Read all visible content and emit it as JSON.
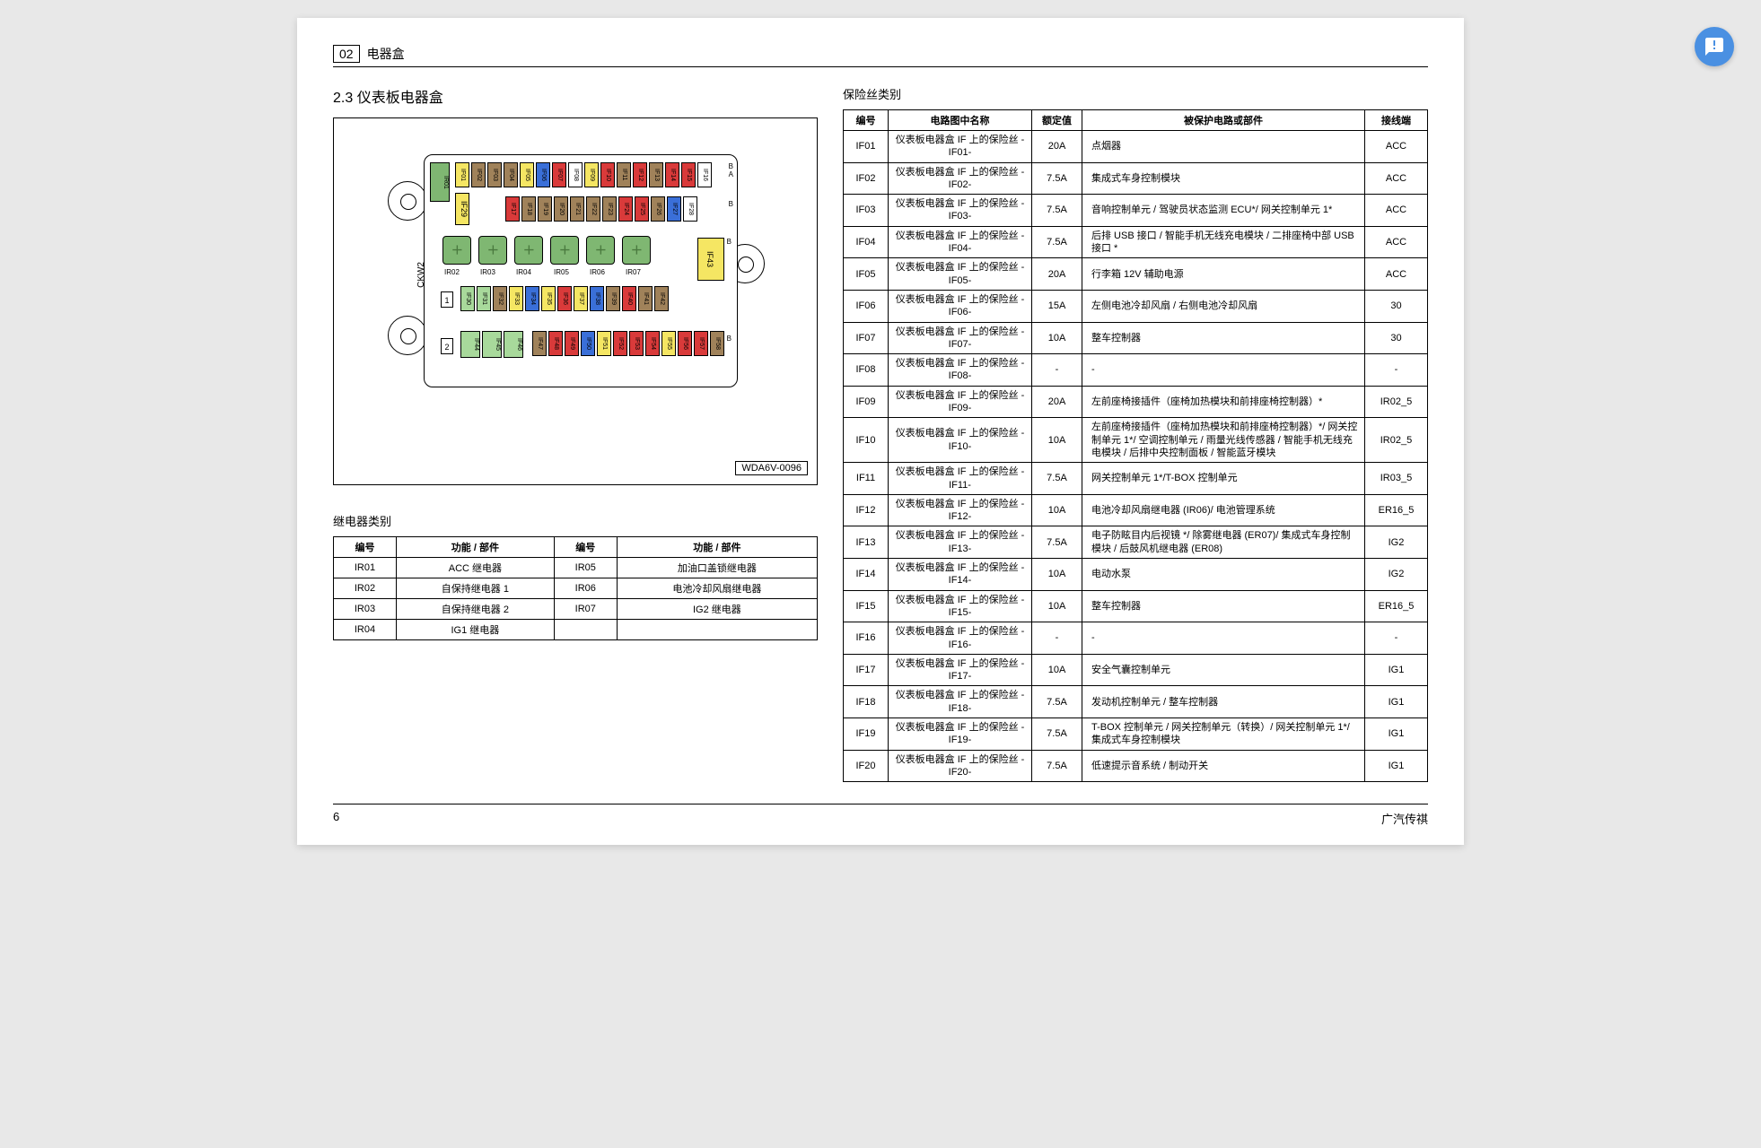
{
  "header": {
    "chapter": "02",
    "title": "电器盒"
  },
  "section_title": "2.3 仪表板电器盒",
  "diagram_code": "WDA6V-0096",
  "ckw2": "CKW2",
  "relay_section_title": "继电器类别",
  "fuse_section_title": "保险丝类别",
  "relay_table": {
    "headers": [
      "编号",
      "功能 / 部件",
      "编号",
      "功能 / 部件"
    ],
    "rows": [
      [
        "IR01",
        "ACC 继电器",
        "IR05",
        "加油口盖锁继电器"
      ],
      [
        "IR02",
        "自保持继电器 1",
        "IR06",
        "电池冷却风扇继电器"
      ],
      [
        "IR03",
        "自保持继电器 2",
        "IR07",
        "IG2 继电器"
      ],
      [
        "IR04",
        "IG1 继电器",
        "",
        ""
      ]
    ]
  },
  "fuse_table": {
    "headers": [
      "编号",
      "电路图中名称",
      "额定值",
      "被保护电路或部件",
      "接线端"
    ],
    "rows": [
      {
        "id": "IF01",
        "name": "仪表板电器盒 IF 上的保险丝 -IF01-",
        "rated": "20A",
        "desc": "点烟器",
        "term": "ACC"
      },
      {
        "id": "IF02",
        "name": "仪表板电器盒 IF 上的保险丝 -IF02-",
        "rated": "7.5A",
        "desc": "集成式车身控制模块",
        "term": "ACC"
      },
      {
        "id": "IF03",
        "name": "仪表板电器盒 IF 上的保险丝 -IF03-",
        "rated": "7.5A",
        "desc": "音响控制单元 / 驾驶员状态监测 ECU*/ 网关控制单元 1*",
        "term": "ACC"
      },
      {
        "id": "IF04",
        "name": "仪表板电器盒 IF 上的保险丝 -IF04-",
        "rated": "7.5A",
        "desc": "后排 USB 接口 / 智能手机无线充电模块 / 二排座椅中部 USB 接口 *",
        "term": "ACC"
      },
      {
        "id": "IF05",
        "name": "仪表板电器盒 IF 上的保险丝 -IF05-",
        "rated": "20A",
        "desc": "行李箱 12V 辅助电源",
        "term": "ACC"
      },
      {
        "id": "IF06",
        "name": "仪表板电器盒 IF 上的保险丝 -IF06-",
        "rated": "15A",
        "desc": "左侧电池冷却风扇 / 右侧电池冷却风扇",
        "term": "30"
      },
      {
        "id": "IF07",
        "name": "仪表板电器盒 IF 上的保险丝 -IF07-",
        "rated": "10A",
        "desc": "整车控制器",
        "term": "30"
      },
      {
        "id": "IF08",
        "name": "仪表板电器盒 IF 上的保险丝 -IF08-",
        "rated": "-",
        "desc": "-",
        "term": "-"
      },
      {
        "id": "IF09",
        "name": "仪表板电器盒 IF 上的保险丝 -IF09-",
        "rated": "20A",
        "desc": "左前座椅接插件（座椅加热模块和前排座椅控制器）*",
        "term": "IR02_5"
      },
      {
        "id": "IF10",
        "name": "仪表板电器盒 IF 上的保险丝 -IF10-",
        "rated": "10A",
        "desc": "左前座椅接插件（座椅加热模块和前排座椅控制器）*/ 网关控制单元 1*/ 空调控制单元 / 雨量光线传感器 / 智能手机无线充电模块 / 后排中央控制面板 / 智能蓝牙模块",
        "term": "IR02_5"
      },
      {
        "id": "IF11",
        "name": "仪表板电器盒 IF 上的保险丝 -IF11-",
        "rated": "7.5A",
        "desc": "网关控制单元 1*/T-BOX 控制单元",
        "term": "IR03_5"
      },
      {
        "id": "IF12",
        "name": "仪表板电器盒 IF 上的保险丝 -IF12-",
        "rated": "10A",
        "desc": "电池冷却风扇继电器 (IR06)/ 电池管理系统",
        "term": "ER16_5"
      },
      {
        "id": "IF13",
        "name": "仪表板电器盒 IF 上的保险丝 -IF13-",
        "rated": "7.5A",
        "desc": "电子防眩目内后视镜 */ 除雾继电器 (ER07)/ 集成式车身控制模块 / 后鼓风机继电器 (ER08)",
        "term": "IG2"
      },
      {
        "id": "IF14",
        "name": "仪表板电器盒 IF 上的保险丝 -IF14-",
        "rated": "10A",
        "desc": "电动水泵",
        "term": "IG2"
      },
      {
        "id": "IF15",
        "name": "仪表板电器盒 IF 上的保险丝 -IF15-",
        "rated": "10A",
        "desc": "整车控制器",
        "term": "ER16_5"
      },
      {
        "id": "IF16",
        "name": "仪表板电器盒 IF 上的保险丝 -IF16-",
        "rated": "-",
        "desc": "-",
        "term": "-"
      },
      {
        "id": "IF17",
        "name": "仪表板电器盒 IF 上的保险丝 -IF17-",
        "rated": "10A",
        "desc": "安全气囊控制单元",
        "term": "IG1"
      },
      {
        "id": "IF18",
        "name": "仪表板电器盒 IF 上的保险丝 -IF18-",
        "rated": "7.5A",
        "desc": "发动机控制单元 / 整车控制器",
        "term": "IG1"
      },
      {
        "id": "IF19",
        "name": "仪表板电器盒 IF 上的保险丝 -IF19-",
        "rated": "7.5A",
        "desc": "T-BOX 控制单元 / 网关控制单元（转换）/ 网关控制单元 1*/ 集成式车身控制模块",
        "term": "IG1"
      },
      {
        "id": "IF20",
        "name": "仪表板电器盒 IF 上的保险丝 -IF20-",
        "rated": "7.5A",
        "desc": "低速提示音系统 / 制动开关",
        "term": "IG1"
      }
    ]
  },
  "footer": {
    "page": "6",
    "brand": "广汽传祺"
  },
  "fuse_colors": {
    "yellow": "#f5e663",
    "brown": "#a0825a",
    "white": "#ffffff",
    "blue": "#3a6fd8",
    "red": "#d93a3a",
    "green": "#7fb772",
    "ltgreen": "#a8d99b",
    "grey": "#c8c8c8"
  },
  "diagram_rows": {
    "rowA": [
      {
        "l": "IF01",
        "c": "yellow"
      },
      {
        "l": "IF02",
        "c": "brown"
      },
      {
        "l": "IF03",
        "c": "brown"
      },
      {
        "l": "IF04",
        "c": "brown"
      },
      {
        "l": "IF05",
        "c": "yellow"
      },
      {
        "l": "IF06",
        "c": "blue"
      },
      {
        "l": "IF07",
        "c": "red"
      },
      {
        "l": "IF08",
        "c": "white"
      },
      {
        "l": "IF09",
        "c": "yellow"
      },
      {
        "l": "IF10",
        "c": "red"
      },
      {
        "l": "IF11",
        "c": "brown"
      },
      {
        "l": "IF12",
        "c": "red"
      },
      {
        "l": "IF13",
        "c": "brown"
      },
      {
        "l": "IF14",
        "c": "red"
      },
      {
        "l": "IF15",
        "c": "red"
      },
      {
        "l": "IF16",
        "c": "white"
      }
    ],
    "rowB": [
      {
        "l": "IF17",
        "c": "red"
      },
      {
        "l": "IF18",
        "c": "brown"
      },
      {
        "l": "IF19",
        "c": "brown"
      },
      {
        "l": "IF20",
        "c": "brown"
      },
      {
        "l": "IF21",
        "c": "brown"
      },
      {
        "l": "IF22",
        "c": "brown"
      },
      {
        "l": "IF23",
        "c": "brown"
      },
      {
        "l": "IF24",
        "c": "red"
      },
      {
        "l": "IF25",
        "c": "red"
      },
      {
        "l": "IF26",
        "c": "brown"
      },
      {
        "l": "IF27",
        "c": "blue"
      },
      {
        "l": "IF28",
        "c": "white"
      }
    ],
    "row1": [
      {
        "l": "IF30",
        "c": "ltgreen"
      },
      {
        "l": "IF31",
        "c": "ltgreen"
      },
      {
        "l": "IF32",
        "c": "brown"
      },
      {
        "l": "IF33",
        "c": "yellow"
      },
      {
        "l": "IF34",
        "c": "blue"
      },
      {
        "l": "IF35",
        "c": "yellow"
      },
      {
        "l": "IF36",
        "c": "red"
      },
      {
        "l": "IF37",
        "c": "yellow"
      },
      {
        "l": "IF38",
        "c": "blue"
      },
      {
        "l": "IF39",
        "c": "brown"
      },
      {
        "l": "IF40",
        "c": "red"
      },
      {
        "l": "IF41",
        "c": "brown"
      },
      {
        "l": "IF42",
        "c": "brown"
      }
    ],
    "row2a": [
      {
        "l": "IF44",
        "c": "ltgreen"
      },
      {
        "l": "IF45",
        "c": "ltgreen"
      },
      {
        "l": "IF46",
        "c": "ltgreen"
      }
    ],
    "row2b": [
      {
        "l": "IF47",
        "c": "brown"
      },
      {
        "l": "IF48",
        "c": "red"
      },
      {
        "l": "IF49",
        "c": "red"
      },
      {
        "l": "IF50",
        "c": "blue"
      },
      {
        "l": "IF51",
        "c": "yellow"
      },
      {
        "l": "IF52",
        "c": "red"
      },
      {
        "l": "IF53",
        "c": "red"
      },
      {
        "l": "IF54",
        "c": "red"
      },
      {
        "l": "IF55",
        "c": "yellow"
      },
      {
        "l": "IF56",
        "c": "red"
      },
      {
        "l": "IF57",
        "c": "red"
      },
      {
        "l": "IF58",
        "c": "brown"
      }
    ],
    "if29": "IF29",
    "if43": "IF43",
    "relays": [
      "IR01",
      "IR02",
      "IR03",
      "IR04",
      "IR05",
      "IR06",
      "IR07"
    ]
  }
}
